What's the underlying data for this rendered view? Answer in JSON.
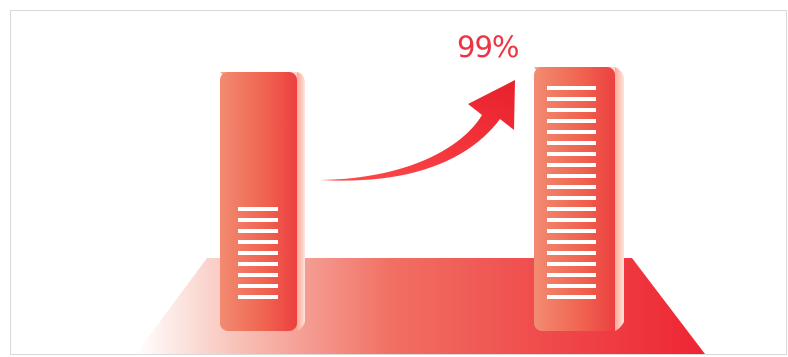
{
  "growth": {
    "percent_label": "99%"
  },
  "colors": {
    "accent_red": "#EE2A36",
    "server_light": "#F7876A",
    "server_dark": "#EB3E3D",
    "slot_white": "#FFFFFF",
    "platform_left": "#FFFFFF",
    "platform_right": "#EE2533",
    "border": "#D9D9D9"
  },
  "servers": [
    {
      "name": "before-server",
      "level": 0.48
    },
    {
      "name": "after-server",
      "level": 1.0
    }
  ],
  "icons": {
    "growth_arrow": "curved-up-arrow-icon",
    "server": "server-tower-icon"
  }
}
